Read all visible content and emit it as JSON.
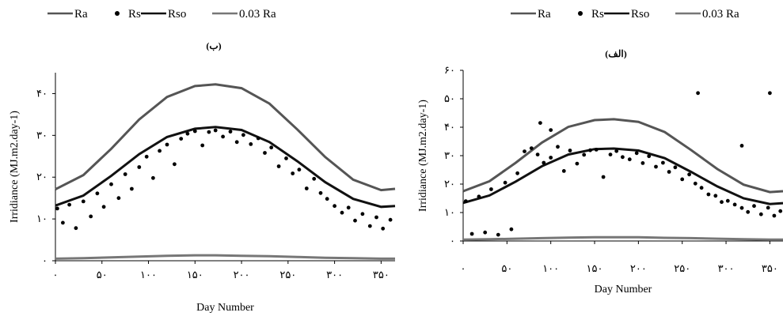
{
  "legend": [
    {
      "label": "Ra",
      "marker": "line",
      "color": "#555555"
    },
    {
      "label": "Rs",
      "marker": "dot",
      "color": "#000000"
    },
    {
      "label": "Rso",
      "marker": "line",
      "color": "#111111"
    },
    {
      "label": "0.03 Ra",
      "marker": "line",
      "color": "#777777"
    }
  ],
  "chart_data": [
    {
      "type": "scatter",
      "title": "(ب)",
      "xlabel": "Day Number",
      "ylabel": "Irridiance (MJ.m2.day-1)",
      "xlim": [
        0,
        365
      ],
      "ylim": [
        0,
        45
      ],
      "x_ticks": [
        0,
        50,
        100,
        150,
        200,
        250,
        300,
        350
      ],
      "x_tick_labels": [
        "۰",
        "۵۰",
        "۱۰۰",
        "۱۵۰",
        "۲۰۰",
        "۲۵۰",
        "۳۰۰",
        "۳۵۰"
      ],
      "y_ticks": [
        0,
        10,
        20,
        30,
        40
      ],
      "y_tick_labels": [
        "۰",
        "۱۰",
        "۲۰",
        "۳۰",
        "۴۰"
      ],
      "grid": false,
      "series": [
        {
          "name": "Ra",
          "type": "line",
          "x": [
            0,
            30,
            60,
            90,
            120,
            150,
            172,
            200,
            230,
            260,
            290,
            320,
            350,
            365
          ],
          "y": [
            17.1,
            20.5,
            26.8,
            33.8,
            39.2,
            41.8,
            42.2,
            41.3,
            37.6,
            31.4,
            24.8,
            19.4,
            16.9,
            17.2
          ]
        },
        {
          "name": "Rso",
          "type": "line",
          "x": [
            0,
            30,
            60,
            90,
            120,
            150,
            172,
            200,
            230,
            260,
            290,
            320,
            350,
            365
          ],
          "y": [
            13.2,
            15.6,
            20.3,
            25.5,
            29.6,
            31.6,
            32.0,
            31.3,
            28.4,
            23.8,
            18.8,
            14.8,
            12.9,
            13.1
          ]
        },
        {
          "name": "0.03 Ra",
          "type": "line",
          "x": [
            0,
            30,
            60,
            90,
            120,
            150,
            172,
            200,
            230,
            260,
            290,
            320,
            350,
            365
          ],
          "y": [
            0.5,
            0.6,
            0.8,
            1.0,
            1.2,
            1.3,
            1.3,
            1.2,
            1.1,
            0.9,
            0.7,
            0.6,
            0.5,
            0.5
          ]
        },
        {
          "name": "Rs",
          "type": "scatter",
          "x": [
            2,
            8,
            15,
            22,
            30,
            38,
            45,
            52,
            60,
            68,
            75,
            82,
            90,
            98,
            105,
            112,
            120,
            128,
            135,
            142,
            150,
            158,
            165,
            172,
            180,
            188,
            195,
            202,
            210,
            218,
            225,
            232,
            240,
            248,
            255,
            262,
            270,
            278,
            285,
            292,
            300,
            308,
            315,
            322,
            330,
            338,
            345,
            352,
            360
          ],
          "y": [
            12.5,
            9.1,
            13.4,
            7.8,
            14.2,
            10.6,
            16.1,
            12.9,
            18.3,
            15.0,
            20.7,
            17.2,
            22.4,
            24.9,
            19.8,
            26.3,
            27.8,
            23.1,
            29.2,
            30.4,
            31.0,
            27.6,
            30.8,
            31.2,
            29.7,
            30.9,
            28.4,
            30.1,
            27.9,
            29.3,
            25.8,
            27.1,
            22.6,
            24.5,
            20.9,
            21.8,
            17.3,
            19.6,
            16.2,
            14.8,
            13.1,
            11.5,
            12.7,
            9.6,
            11.2,
            8.3,
            10.4,
            7.7,
            9.8
          ]
        }
      ]
    },
    {
      "type": "scatter",
      "title": "(الف)",
      "xlabel": "Day Number",
      "ylabel": "Irridiance (MJ.m2.day-1)",
      "xlim": [
        0,
        365
      ],
      "ylim": [
        0,
        60
      ],
      "x_ticks": [
        0,
        50,
        100,
        150,
        200,
        250,
        300,
        350
      ],
      "x_tick_labels": [
        "۰",
        "۵۰",
        "۱۰۰",
        "۱۵۰",
        "۲۰۰",
        "۲۵۰",
        "۳۰۰",
        "۳۵۰"
      ],
      "y_ticks": [
        0,
        10,
        20,
        30,
        40,
        50,
        60
      ],
      "y_tick_labels": [
        "۰",
        "۱۰",
        "۲۰",
        "۳۰",
        "۴۰",
        "۵۰",
        "۶۰"
      ],
      "grid": false,
      "series": [
        {
          "name": "Ra",
          "type": "line",
          "x": [
            0,
            30,
            60,
            90,
            120,
            150,
            172,
            200,
            230,
            260,
            290,
            320,
            350,
            365
          ],
          "y": [
            17.5,
            21.0,
            27.5,
            34.6,
            40.1,
            42.5,
            42.8,
            41.9,
            38.3,
            32.0,
            25.3,
            19.8,
            17.2,
            17.5
          ]
        },
        {
          "name": "Rso",
          "type": "line",
          "x": [
            0,
            30,
            60,
            90,
            120,
            150,
            172,
            200,
            230,
            260,
            290,
            320,
            350,
            365
          ],
          "y": [
            13.4,
            16.0,
            20.9,
            26.3,
            30.4,
            32.3,
            32.5,
            31.8,
            29.1,
            24.3,
            19.2,
            15.0,
            13.0,
            13.3
          ]
        },
        {
          "name": "0.03 Ra",
          "type": "line",
          "x": [
            0,
            30,
            60,
            90,
            120,
            150,
            172,
            200,
            230,
            260,
            290,
            320,
            350,
            365
          ],
          "y": [
            0.5,
            0.6,
            0.8,
            1.0,
            1.2,
            1.3,
            1.3,
            1.3,
            1.1,
            1.0,
            0.8,
            0.6,
            0.5,
            0.5
          ]
        },
        {
          "name": "Rs",
          "type": "scatter",
          "x": [
            3,
            10,
            18,
            25,
            32,
            40,
            48,
            55,
            62,
            70,
            78,
            85,
            92,
            100,
            108,
            115,
            122,
            130,
            138,
            145,
            152,
            160,
            168,
            175,
            182,
            190,
            198,
            205,
            212,
            220,
            228,
            235,
            242,
            250,
            258,
            265,
            272,
            280,
            288,
            295,
            302,
            310,
            318,
            325,
            332,
            340,
            348,
            355,
            362,
            88,
            100,
            268,
            350,
            318
          ],
          "y": [
            14.0,
            2.5,
            15.6,
            3.0,
            18.2,
            2.2,
            20.5,
            4.1,
            23.8,
            31.5,
            32.6,
            30.4,
            27.5,
            29.3,
            33.1,
            24.6,
            31.8,
            27.2,
            30.3,
            31.9,
            32.1,
            22.5,
            30.4,
            31.6,
            29.5,
            28.7,
            30.9,
            27.4,
            29.8,
            26.1,
            27.5,
            24.3,
            25.9,
            21.7,
            23.4,
            20.2,
            18.7,
            16.4,
            15.9,
            13.7,
            14.1,
            12.8,
            11.6,
            10.2,
            12.3,
            9.4,
            11.7,
            8.9,
            10.5,
            41.5,
            39.0,
            52.0,
            52.0,
            33.5
          ]
        }
      ]
    }
  ]
}
